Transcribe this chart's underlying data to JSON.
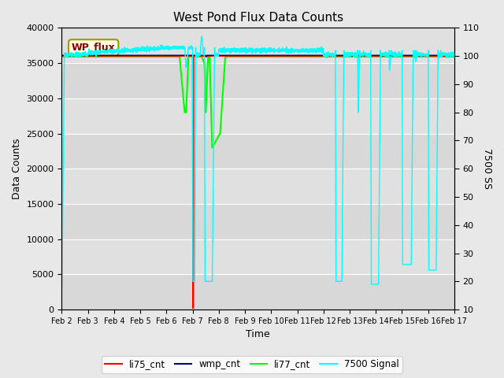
{
  "title": "West Pond Flux Data Counts",
  "xlabel": "Time",
  "ylabel_left": "Data Counts",
  "ylabel_right": "7500 SS",
  "ylim_left": [
    0,
    40000
  ],
  "ylim_right": [
    10,
    110
  ],
  "fig_facecolor": "#e8e8e8",
  "plot_facecolor": "#d8d8d8",
  "annotation_text": "WP_flux"
}
